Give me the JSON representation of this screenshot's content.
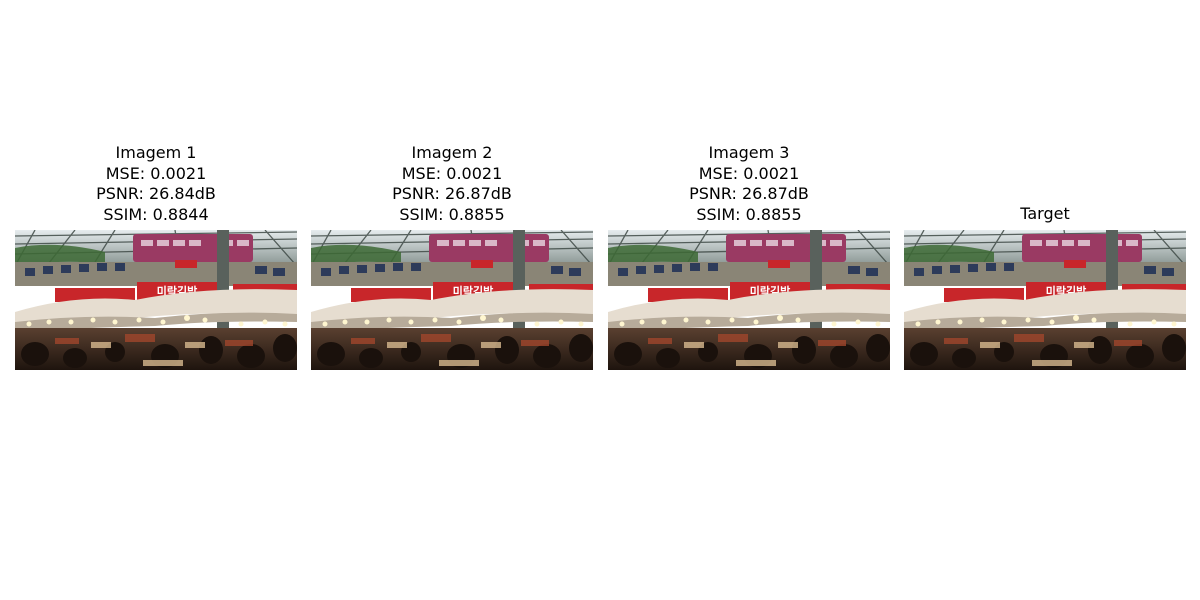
{
  "panels": [
    {
      "title": "Imagem 1",
      "mse": "MSE: 0.0021",
      "psnr": "PSNR: 26.84dB",
      "ssim": "SSIM: 0.8844",
      "sign_text": "미락김밥"
    },
    {
      "title": "Imagem 2",
      "mse": "MSE: 0.0021",
      "psnr": "PSNR: 26.87dB",
      "ssim": "SSIM: 0.8855",
      "sign_text": "미락김밥"
    },
    {
      "title": "Imagem 3",
      "mse": "MSE: 0.0021",
      "psnr": "PSNR: 26.87dB",
      "ssim": "SSIM: 0.8855",
      "sign_text": "미락김밥"
    },
    {
      "title": "Target",
      "sign_text": "미락김밥"
    }
  ],
  "colors": {
    "background": "#ffffff",
    "roof": "#c9d2d6",
    "banner_red": "#c8262a",
    "train_magenta": "#9a3a63",
    "awning": "#e6ddd0",
    "floor_dark": "#2a1a12"
  }
}
